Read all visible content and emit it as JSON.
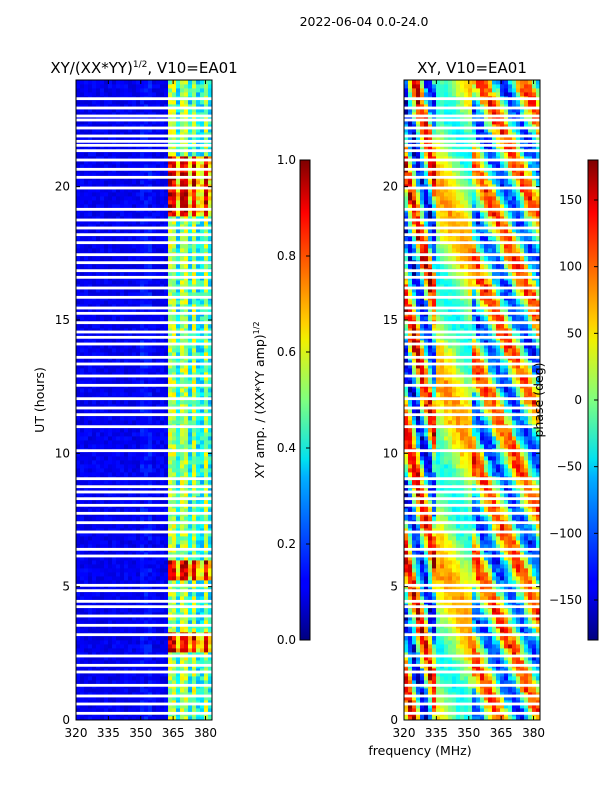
{
  "chart_data": {
    "suptitle": "2022-06-04 0.0-24.0",
    "shared_xlabel": "frequency (MHz)",
    "panels": [
      {
        "type": "heatmap",
        "title_base": "XY/(XX*YY)",
        "title_exp": "1/2",
        "title_suffix": ", V10=EA01",
        "ylabel": "UT (hours)",
        "xlim": [
          320,
          383
        ],
        "ylim": [
          0,
          24
        ],
        "xticks": [
          320,
          335,
          350,
          365,
          380
        ],
        "yticks": [
          0,
          5,
          10,
          15,
          20
        ],
        "colorbar": {
          "label_base": "XY amp. / (XX*YY amp)",
          "label_exp": "1/2",
          "range": [
            0.0,
            1.0
          ],
          "ticks": [
            "0.0",
            "0.2",
            "0.4",
            "0.6",
            "0.8",
            "1.0"
          ],
          "tick_values": [
            0.0,
            0.2,
            0.4,
            0.6,
            0.8,
            1.0
          ]
        }
      },
      {
        "type": "heatmap",
        "title": "XY, V10=EA01",
        "xlim": [
          320,
          383
        ],
        "ylim": [
          0,
          24
        ],
        "xticks": [
          320,
          335,
          350,
          365,
          380
        ],
        "yticks": [
          0,
          5,
          10,
          15,
          20
        ],
        "colorbar": {
          "label": "phase (deg)",
          "range": [
            -180,
            180
          ],
          "ticks": [
            "150",
            "100",
            "50",
            "0",
            "−50",
            "−100",
            "−150"
          ],
          "tick_values": [
            150,
            100,
            50,
            0,
            -50,
            -100,
            -150
          ]
        }
      }
    ],
    "gap_hours": [
      0.25,
      0.6,
      0.9,
      1.3,
      1.8,
      2.05,
      2.4,
      3.2,
      3.55,
      3.9,
      4.25,
      4.45,
      4.85,
      5.05,
      6.15,
      6.4,
      7.05,
      7.4,
      7.75,
      8.05,
      8.3,
      8.55,
      8.75,
      9.05,
      10.1,
      11.0,
      11.45,
      11.7,
      12.05,
      12.55,
      12.9,
      13.35,
      13.6,
      14.1,
      14.35,
      14.55,
      14.9,
      15.25,
      15.45,
      15.85,
      16.2,
      16.6,
      16.85,
      17.15,
      17.45,
      17.9,
      18.2,
      18.45,
      18.75,
      19.15,
      19.95,
      20.35,
      20.65,
      21.0,
      21.35,
      21.55,
      21.7,
      21.9,
      22.2,
      22.5,
      22.65,
      22.95,
      23.3
    ]
  }
}
